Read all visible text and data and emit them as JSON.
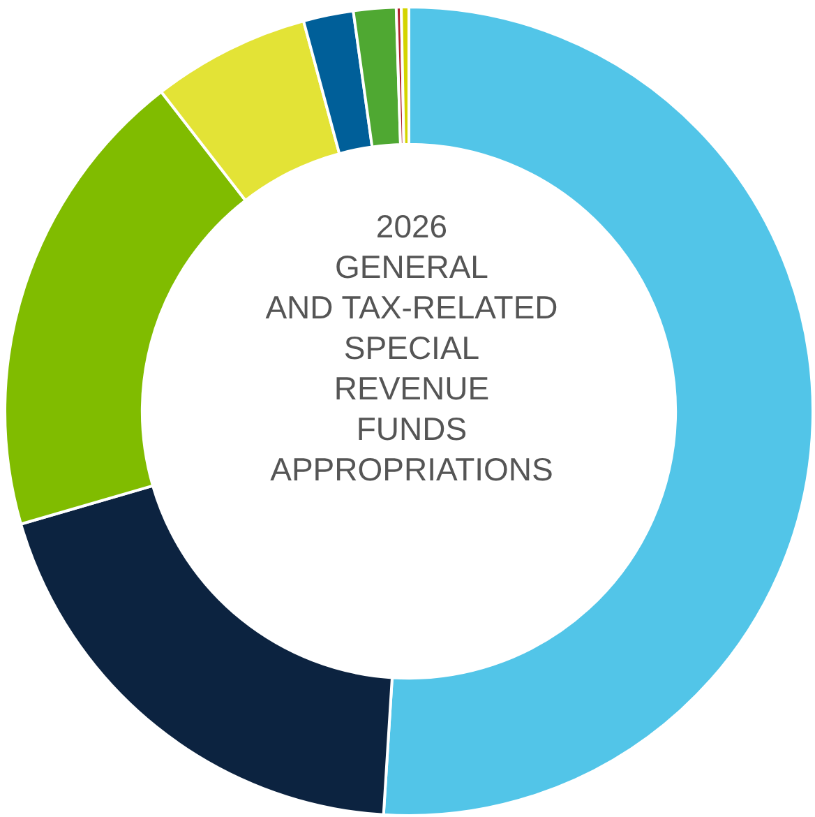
{
  "chart_data": {
    "type": "donut",
    "title": "2026\nGENERAL\nAND TAX-RELATED\nSPECIAL\nREVENUE\nFUNDS\nAPPROPRIATIONS",
    "categories": [
      null,
      null,
      null,
      null,
      null,
      null,
      null,
      null
    ],
    "values": [
      51.0,
      19.5,
      19.0,
      6.3,
      2.0,
      1.7,
      0.2,
      0.3
    ],
    "colors": [
      "#52c5e8",
      "#0c2340",
      "#80bc00",
      "#e3e336",
      "#005f99",
      "#4fa832",
      "#b0202a",
      "#d4d400"
    ],
    "legend": false
  }
}
